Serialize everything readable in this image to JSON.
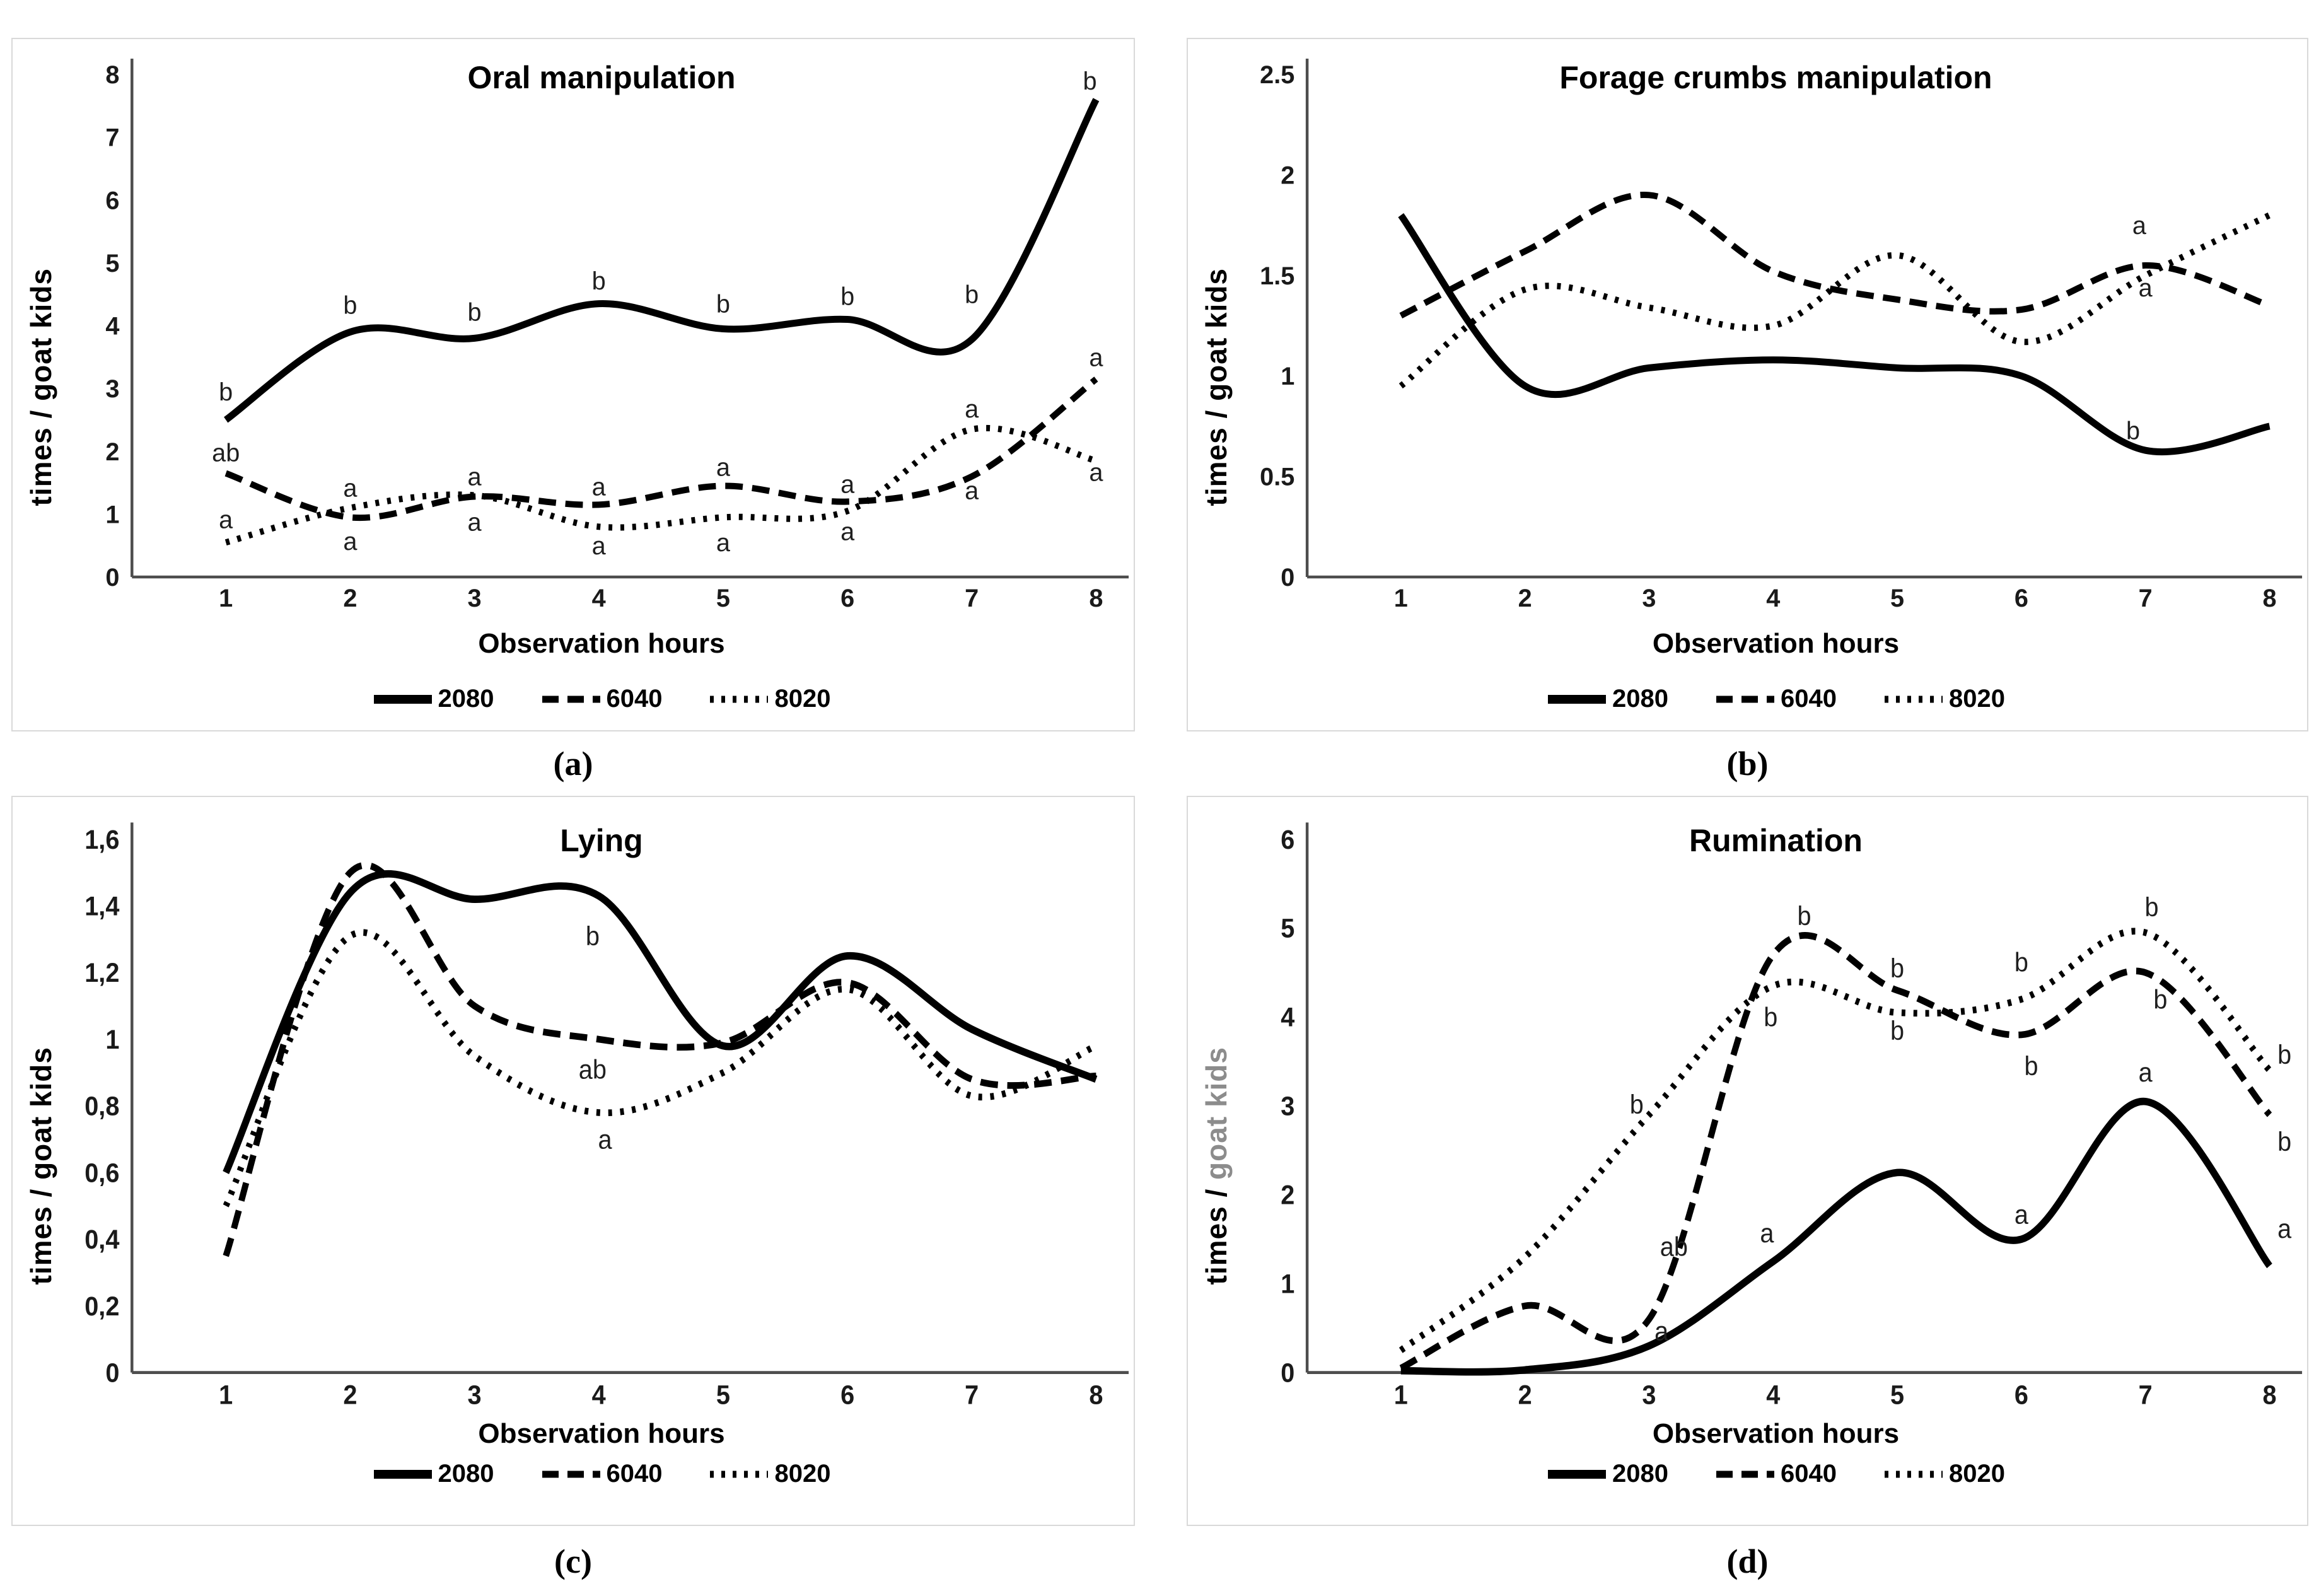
{
  "figure": {
    "background": "#ffffff",
    "panel_border_color": "#d9d9d9",
    "axis_color": "#4d4d4d",
    "series_color": "#000000",
    "annotation_color": "#1f1f1f",
    "gray_label_color": "#8c8c8c"
  },
  "chart_data": [
    {
      "id": "a",
      "type": "line",
      "line_shape": "smoothed",
      "grid": false,
      "legend_position": "bottom",
      "title": "Oral manipulation",
      "caption": "(a)",
      "x_label": "Observation hours",
      "y_label": "times / goat kids",
      "y_axis": {
        "min": 0,
        "max": 8,
        "step": 1,
        "tick_labels": [
          "0",
          "1",
          "2",
          "3",
          "4",
          "5",
          "6",
          "7",
          "8"
        ]
      },
      "x_ticks": [
        "1",
        "2",
        "3",
        "4",
        "5",
        "6",
        "7",
        "8"
      ],
      "series": [
        {
          "name": "2080",
          "style": "solid",
          "values": [
            2.5,
            3.9,
            3.8,
            4.35,
            3.95,
            4.1,
            3.78,
            7.6
          ]
        },
        {
          "name": "6040",
          "style": "dashed",
          "values": [
            1.65,
            0.95,
            1.28,
            1.15,
            1.45,
            1.2,
            1.6,
            3.15
          ]
        },
        {
          "name": "8020",
          "style": "dotted",
          "values": [
            0.55,
            1.1,
            1.3,
            0.8,
            0.95,
            1.05,
            2.35,
            1.85
          ]
        }
      ],
      "annotations": [
        {
          "t": "b",
          "x": 1,
          "y": 2.95
        },
        {
          "t": "b",
          "x": 2,
          "y": 4.33
        },
        {
          "t": "b",
          "x": 3,
          "y": 4.22
        },
        {
          "t": "b",
          "x": 4,
          "y": 4.72
        },
        {
          "t": "b",
          "x": 5,
          "y": 4.35
        },
        {
          "t": "b",
          "x": 6,
          "y": 4.47
        },
        {
          "t": "b",
          "x": 7,
          "y": 4.5
        },
        {
          "t": "b",
          "x": 7.95,
          "y": 7.9
        },
        {
          "t": "ab",
          "x": 1,
          "y": 1.98
        },
        {
          "t": "a",
          "x": 1,
          "y": 0.92
        },
        {
          "t": "a",
          "x": 2,
          "y": 1.42
        },
        {
          "t": "a",
          "x": 2,
          "y": 0.57
        },
        {
          "t": "a",
          "x": 3,
          "y": 1.6
        },
        {
          "t": "a",
          "x": 3,
          "y": 0.88
        },
        {
          "t": "a",
          "x": 4,
          "y": 1.44
        },
        {
          "t": "a",
          "x": 4,
          "y": 0.5
        },
        {
          "t": "a",
          "x": 5,
          "y": 1.75
        },
        {
          "t": "a",
          "x": 5,
          "y": 0.55
        },
        {
          "t": "a",
          "x": 6,
          "y": 1.48
        },
        {
          "t": "a",
          "x": 6,
          "y": 0.73
        },
        {
          "t": "a",
          "x": 7,
          "y": 2.68
        },
        {
          "t": "a",
          "x": 7,
          "y": 1.38
        },
        {
          "t": "a",
          "x": 8,
          "y": 3.5
        },
        {
          "t": "a",
          "x": 8,
          "y": 1.67
        }
      ]
    },
    {
      "id": "b",
      "type": "line",
      "line_shape": "smoothed",
      "grid": false,
      "legend_position": "bottom",
      "title": "Forage crumbs manipulation",
      "caption": "(b)",
      "x_label": "Observation hours",
      "y_label": "times / goat kids",
      "y_axis": {
        "min": 0,
        "max": 2.5,
        "step": 0.5,
        "tick_labels": [
          "0",
          "0.5",
          "1",
          "1.5",
          "2",
          "2.5"
        ]
      },
      "x_ticks": [
        "1",
        "2",
        "3",
        "4",
        "5",
        "6",
        "7",
        "8"
      ],
      "series": [
        {
          "name": "2080",
          "style": "solid",
          "values": [
            1.8,
            0.95,
            1.04,
            1.08,
            1.04,
            1.0,
            0.63,
            0.75
          ]
        },
        {
          "name": "6040",
          "style": "dashed",
          "values": [
            1.3,
            1.62,
            1.9,
            1.52,
            1.38,
            1.33,
            1.55,
            1.35
          ]
        },
        {
          "name": "8020",
          "style": "dotted",
          "values": [
            0.95,
            1.43,
            1.34,
            1.25,
            1.6,
            1.17,
            1.5,
            1.8
          ]
        }
      ],
      "annotations": [
        {
          "t": "a",
          "x": 6.95,
          "y": 1.75
        },
        {
          "t": "a",
          "x": 7.0,
          "y": 1.44
        },
        {
          "t": "b",
          "x": 6.9,
          "y": 0.73
        }
      ]
    },
    {
      "id": "c",
      "type": "line",
      "line_shape": "smoothed",
      "grid": false,
      "legend_position": "bottom",
      "title": "Lying",
      "caption": "(c)",
      "x_label": "Observation hours",
      "y_label": "times / goat kids",
      "y_axis": {
        "min": 0,
        "max": 1.6,
        "step": 0.2,
        "tick_labels": [
          "0",
          "0,2",
          "0,4",
          "0,6",
          "0,8",
          "1",
          "1,2",
          "1,4",
          "1,6"
        ]
      },
      "x_ticks": [
        "1",
        "2",
        "3",
        "4",
        "5",
        "6",
        "7",
        "8"
      ],
      "series": [
        {
          "name": "2080",
          "style": "solid",
          "values": [
            0.6,
            1.44,
            1.42,
            1.43,
            0.98,
            1.25,
            1.03,
            0.88
          ]
        },
        {
          "name": "6040",
          "style": "dashed",
          "values": [
            0.35,
            1.5,
            1.1,
            1.0,
            0.99,
            1.17,
            0.88,
            0.89
          ]
        },
        {
          "name": "8020",
          "style": "dotted",
          "values": [
            0.5,
            1.31,
            0.95,
            0.78,
            0.9,
            1.15,
            0.83,
            0.98
          ]
        }
      ],
      "annotations": [
        {
          "t": "b",
          "x": 3.95,
          "y": 1.31
        },
        {
          "t": "ab",
          "x": 3.95,
          "y": 0.91
        },
        {
          "t": "a",
          "x": 4.05,
          "y": 0.7
        }
      ]
    },
    {
      "id": "d",
      "type": "line",
      "line_shape": "smoothed",
      "grid": false,
      "legend_position": "bottom",
      "title": "Rumination",
      "caption": "(d)",
      "x_label": "Observation hours",
      "y_label_dark": "times / ",
      "y_label_gray": "goat kids",
      "y_axis": {
        "min": 0,
        "max": 6,
        "step": 1,
        "tick_labels": [
          "0",
          "1",
          "2",
          "3",
          "4",
          "5",
          "6"
        ]
      },
      "x_ticks": [
        "1",
        "2",
        "3",
        "4",
        "5",
        "6",
        "7",
        "8"
      ],
      "series": [
        {
          "name": "2080",
          "style": "solid",
          "values": [
            0.02,
            0.03,
            0.3,
            1.25,
            2.25,
            1.5,
            3.05,
            1.2
          ]
        },
        {
          "name": "6040",
          "style": "dashed",
          "values": [
            0.05,
            0.75,
            0.6,
            4.7,
            4.3,
            3.8,
            4.5,
            2.9
          ]
        },
        {
          "name": "8020",
          "style": "dotted",
          "values": [
            0.25,
            1.3,
            2.9,
            4.35,
            4.05,
            4.2,
            4.95,
            3.4
          ]
        }
      ],
      "annotations": [
        {
          "t": "b",
          "x": 2.9,
          "y": 3.02
        },
        {
          "t": "ab",
          "x": 3.2,
          "y": 1.42
        },
        {
          "t": "a",
          "x": 3.1,
          "y": 0.47
        },
        {
          "t": "a",
          "x": 3.95,
          "y": 1.57
        },
        {
          "t": "b",
          "x": 4.25,
          "y": 5.14
        },
        {
          "t": "b",
          "x": 3.98,
          "y": 4.0
        },
        {
          "t": "b",
          "x": 5.0,
          "y": 4.55
        },
        {
          "t": "b",
          "x": 5.0,
          "y": 3.85
        },
        {
          "t": "b",
          "x": 6.0,
          "y": 4.62
        },
        {
          "t": "b",
          "x": 6.08,
          "y": 3.45
        },
        {
          "t": "a",
          "x": 6.0,
          "y": 1.78
        },
        {
          "t": "b",
          "x": 7.05,
          "y": 5.24
        },
        {
          "t": "b",
          "x": 7.12,
          "y": 4.2
        },
        {
          "t": "a",
          "x": 7.0,
          "y": 3.38
        },
        {
          "t": "b",
          "x": 8.12,
          "y": 3.58
        },
        {
          "t": "b",
          "x": 8.12,
          "y": 2.6
        },
        {
          "t": "a",
          "x": 8.12,
          "y": 1.62
        }
      ]
    }
  ]
}
